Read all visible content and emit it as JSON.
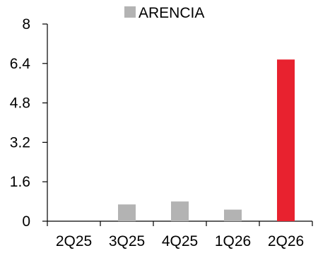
{
  "chart_data": {
    "type": "bar",
    "categories": [
      "2Q25",
      "3Q25",
      "4Q25",
      "1Q26",
      "2Q26"
    ],
    "series": [
      {
        "name": "ARENCIA",
        "values": [
          0,
          0.68,
          0.8,
          0.47,
          6.56
        ],
        "colors": [
          "#b3b3b3",
          "#b3b3b3",
          "#b3b3b3",
          "#b3b3b3",
          "#e8222f"
        ]
      }
    ],
    "y_ticks": [
      "0",
      "1.6",
      "3.2",
      "4.8",
      "6.4",
      "8"
    ],
    "ylim": [
      0,
      8
    ],
    "grid": false,
    "legend": {
      "position": "top-center",
      "label": "ARENCIA",
      "swatch_color": "#b3b3b3"
    },
    "title": "",
    "xlabel": "",
    "ylabel": ""
  }
}
